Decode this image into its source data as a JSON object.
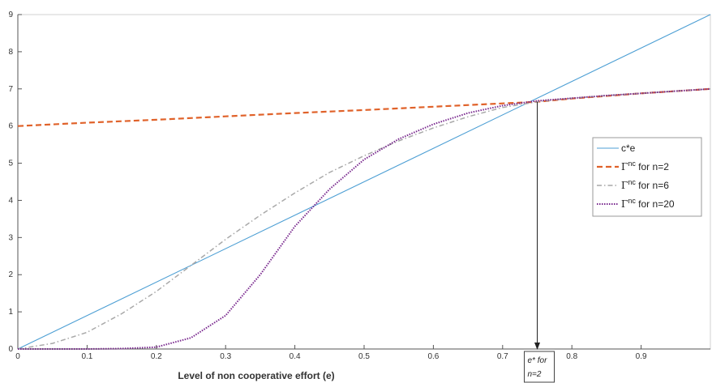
{
  "chart_data": {
    "type": "line",
    "xlabel": "Level of non cooperative effort (e)",
    "ylabel": "",
    "xlim": [
      0,
      1
    ],
    "ylim": [
      0,
      9
    ],
    "xticks": [
      "0",
      "0.1",
      "0.2",
      "0.3",
      "0.4",
      "0.5",
      "0.6",
      "0.7",
      "0.8",
      "0.9"
    ],
    "yticks": [
      "0",
      "1",
      "2",
      "3",
      "4",
      "5",
      "6",
      "7",
      "8",
      "9"
    ],
    "grid": false,
    "legend_position": "right",
    "series": [
      {
        "name": "c*e",
        "color": "#4d9fd4",
        "dash": "solid",
        "x": [
          0,
          1
        ],
        "y": [
          0,
          9
        ]
      },
      {
        "name": "Γ^nc for n=2",
        "legend_symbol": "Γ",
        "legend_sup": "nc",
        "legend_suffix": " for n=2",
        "color": "#e0622a",
        "dash": "dashed",
        "x": [
          0,
          0.1,
          0.2,
          0.3,
          0.4,
          0.5,
          0.6,
          0.7,
          0.75,
          0.8,
          0.9,
          1.0
        ],
        "y": [
          6.0,
          6.09,
          6.17,
          6.26,
          6.35,
          6.43,
          6.52,
          6.61,
          6.65,
          6.74,
          6.88,
          7.0
        ]
      },
      {
        "name": "Γ^nc for n=6",
        "legend_symbol": "Γ",
        "legend_sup": "nc",
        "legend_suffix": " for n=6",
        "color": "#a9a9a9",
        "dash": "dashdot",
        "x": [
          0,
          0.05,
          0.1,
          0.15,
          0.2,
          0.25,
          0.3,
          0.35,
          0.4,
          0.45,
          0.5,
          0.55,
          0.6,
          0.65,
          0.7,
          0.75,
          0.8,
          0.85,
          0.9,
          0.95,
          1.0
        ],
        "y": [
          0,
          0.15,
          0.45,
          0.95,
          1.55,
          2.25,
          2.95,
          3.6,
          4.2,
          4.75,
          5.2,
          5.6,
          5.95,
          6.25,
          6.5,
          6.65,
          6.75,
          6.82,
          6.88,
          6.94,
          7.0
        ]
      },
      {
        "name": "Γ^nc for n=20",
        "legend_symbol": "Γ",
        "legend_sup": "nc",
        "legend_suffix": " for n=20",
        "color": "#7a2a8f",
        "dash": "dotted",
        "x": [
          0,
          0.1,
          0.15,
          0.2,
          0.25,
          0.3,
          0.35,
          0.4,
          0.45,
          0.5,
          0.55,
          0.6,
          0.65,
          0.7,
          0.75,
          0.8,
          0.85,
          0.9,
          0.95,
          1.0
        ],
        "y": [
          0,
          0,
          0.01,
          0.05,
          0.3,
          0.9,
          2.0,
          3.3,
          4.3,
          5.1,
          5.65,
          6.05,
          6.35,
          6.55,
          6.68,
          6.75,
          6.82,
          6.88,
          6.94,
          7.0
        ]
      }
    ],
    "annotation": {
      "line1": "e* for",
      "line2": "n=2",
      "x": 0.75,
      "y_from": 6.65,
      "y_to": 0
    }
  }
}
